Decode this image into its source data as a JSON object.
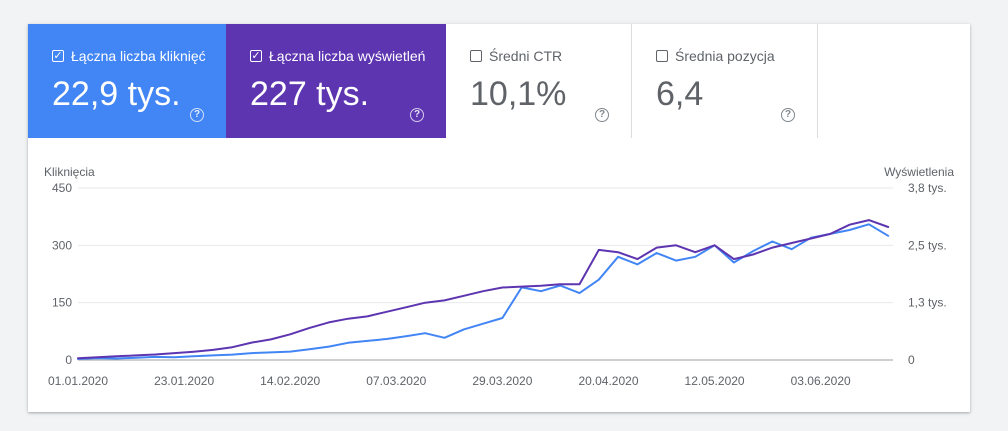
{
  "metrics": [
    {
      "label": "Łączna liczba kliknięć",
      "value": "22,9 tys.",
      "checked": true,
      "color": "#4285f4"
    },
    {
      "label": "Łączna liczba wyświetleń",
      "value": "227 tys.",
      "checked": true,
      "color": "#5e35b1"
    },
    {
      "label": "Średni CTR",
      "value": "10,1%",
      "checked": false,
      "color": "#ffffff"
    },
    {
      "label": "Średnia pozycja",
      "value": "6,4",
      "checked": false,
      "color": "#ffffff"
    }
  ],
  "help_icon": "?",
  "check_icon": "✓",
  "chart_data": {
    "type": "line",
    "y_left_label": "Kliknięcia",
    "y_right_label": "Wyświetlenia",
    "y_left_ticks": [
      "0",
      "150",
      "300",
      "450"
    ],
    "y_left_range": [
      0,
      450
    ],
    "y_right_ticks": [
      "0",
      "1,3 tys.",
      "2,5 tys.",
      "3,8 tys."
    ],
    "y_right_range": [
      0,
      3750
    ],
    "x_tick_labels": [
      "01.01.2020",
      "23.01.2020",
      "14.02.2020",
      "07.03.2020",
      "29.03.2020",
      "20.04.2020",
      "12.05.2020",
      "03.06.2020"
    ],
    "x_range": [
      "2020-01-01",
      "2020-06-18"
    ],
    "grid": true,
    "series": [
      {
        "name": "Kliknięcia",
        "axis": "left",
        "color": "#4285f4",
        "x": [
          "2020-01-01",
          "2020-01-05",
          "2020-01-09",
          "2020-01-13",
          "2020-01-17",
          "2020-01-21",
          "2020-01-25",
          "2020-01-29",
          "2020-02-02",
          "2020-02-06",
          "2020-02-10",
          "2020-02-14",
          "2020-02-18",
          "2020-02-22",
          "2020-02-26",
          "2020-03-01",
          "2020-03-05",
          "2020-03-09",
          "2020-03-13",
          "2020-03-17",
          "2020-03-21",
          "2020-03-25",
          "2020-03-29",
          "2020-04-02",
          "2020-04-06",
          "2020-04-10",
          "2020-04-14",
          "2020-04-18",
          "2020-04-22",
          "2020-04-26",
          "2020-04-30",
          "2020-05-04",
          "2020-05-08",
          "2020-05-12",
          "2020-05-16",
          "2020-05-20",
          "2020-05-24",
          "2020-05-28",
          "2020-06-01",
          "2020-06-05",
          "2020-06-09",
          "2020-06-13",
          "2020-06-17"
        ],
        "values": [
          3,
          5,
          4,
          6,
          8,
          7,
          10,
          12,
          14,
          18,
          20,
          22,
          28,
          35,
          45,
          50,
          55,
          62,
          70,
          58,
          80,
          95,
          110,
          190,
          180,
          195,
          175,
          210,
          270,
          250,
          280,
          260,
          270,
          300,
          255,
          285,
          310,
          290,
          320,
          330,
          340,
          355,
          325
        ]
      },
      {
        "name": "Wyświetlenia",
        "axis": "right",
        "color": "#5e35b1",
        "x": [
          "2020-01-01",
          "2020-01-05",
          "2020-01-09",
          "2020-01-13",
          "2020-01-17",
          "2020-01-21",
          "2020-01-25",
          "2020-01-29",
          "2020-02-02",
          "2020-02-06",
          "2020-02-10",
          "2020-02-14",
          "2020-02-18",
          "2020-02-22",
          "2020-02-26",
          "2020-03-01",
          "2020-03-05",
          "2020-03-09",
          "2020-03-13",
          "2020-03-17",
          "2020-03-21",
          "2020-03-25",
          "2020-03-29",
          "2020-04-02",
          "2020-04-06",
          "2020-04-10",
          "2020-04-14",
          "2020-04-18",
          "2020-04-22",
          "2020-04-26",
          "2020-04-30",
          "2020-05-04",
          "2020-05-08",
          "2020-05-12",
          "2020-05-16",
          "2020-05-20",
          "2020-05-24",
          "2020-05-28",
          "2020-06-01",
          "2020-06-05",
          "2020-06-09",
          "2020-06-13",
          "2020-06-17"
        ],
        "values": [
          40,
          60,
          80,
          100,
          120,
          150,
          180,
          220,
          280,
          380,
          450,
          560,
          700,
          820,
          900,
          950,
          1050,
          1150,
          1250,
          1300,
          1400,
          1500,
          1580,
          1600,
          1620,
          1650,
          1650,
          2400,
          2350,
          2200,
          2450,
          2500,
          2350,
          2500,
          2200,
          2300,
          2450,
          2550,
          2650,
          2750,
          2950,
          3050,
          2900
        ]
      }
    ]
  }
}
